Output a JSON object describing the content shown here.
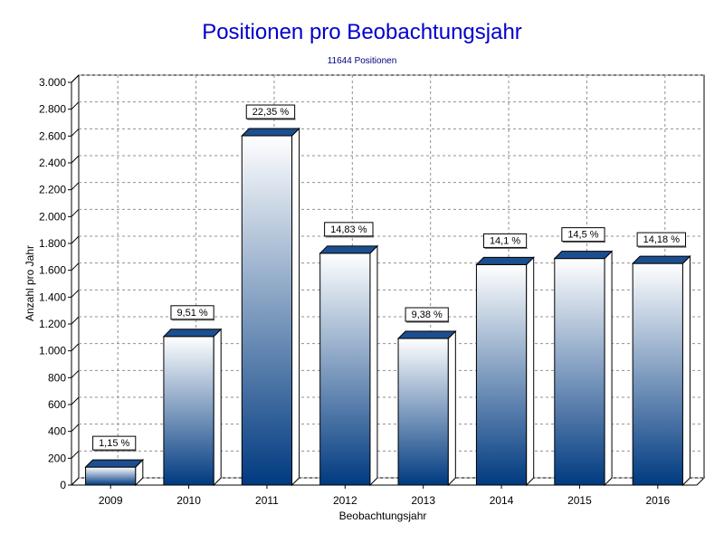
{
  "colors": {
    "title": "#0000cc",
    "subtitle": "#000080",
    "bar_top": "#ffffff",
    "bar_bottom": "#003a80",
    "bar_side": "#ffffff",
    "bar_cap": "#1c4f8f",
    "grid": "#909090"
  },
  "chart_data": {
    "type": "bar",
    "title": "Positionen pro Beobachtungsjahr",
    "subtitle": "11644 Positionen",
    "xlabel": "Beobachtungsjahr",
    "ylabel": "Anzahl pro Jahr",
    "categories": [
      "2009",
      "2010",
      "2011",
      "2012",
      "2013",
      "2014",
      "2015",
      "2016"
    ],
    "values": [
      134,
      1107,
      2602,
      1727,
      1092,
      1642,
      1688,
      1651
    ],
    "data_labels": [
      "1,15 %",
      "9,51 %",
      "22,35 %",
      "14,83 %",
      "9,38 %",
      "14,1 %",
      "14,5 %",
      "14,18 %"
    ],
    "ylim": [
      0,
      3000
    ],
    "yticks": [
      0,
      200,
      400,
      600,
      800,
      1000,
      1200,
      1400,
      1600,
      1800,
      2000,
      2200,
      2400,
      2600,
      2800,
      3000
    ],
    "ytick_labels": [
      "0",
      "200",
      "400",
      "600",
      "800",
      "1.000",
      "1.200",
      "1.400",
      "1.600",
      "1.800",
      "2.000",
      "2.200",
      "2.400",
      "2.600",
      "2.800",
      "3.000"
    ],
    "grid": true,
    "legend": "none",
    "style": "3d"
  }
}
